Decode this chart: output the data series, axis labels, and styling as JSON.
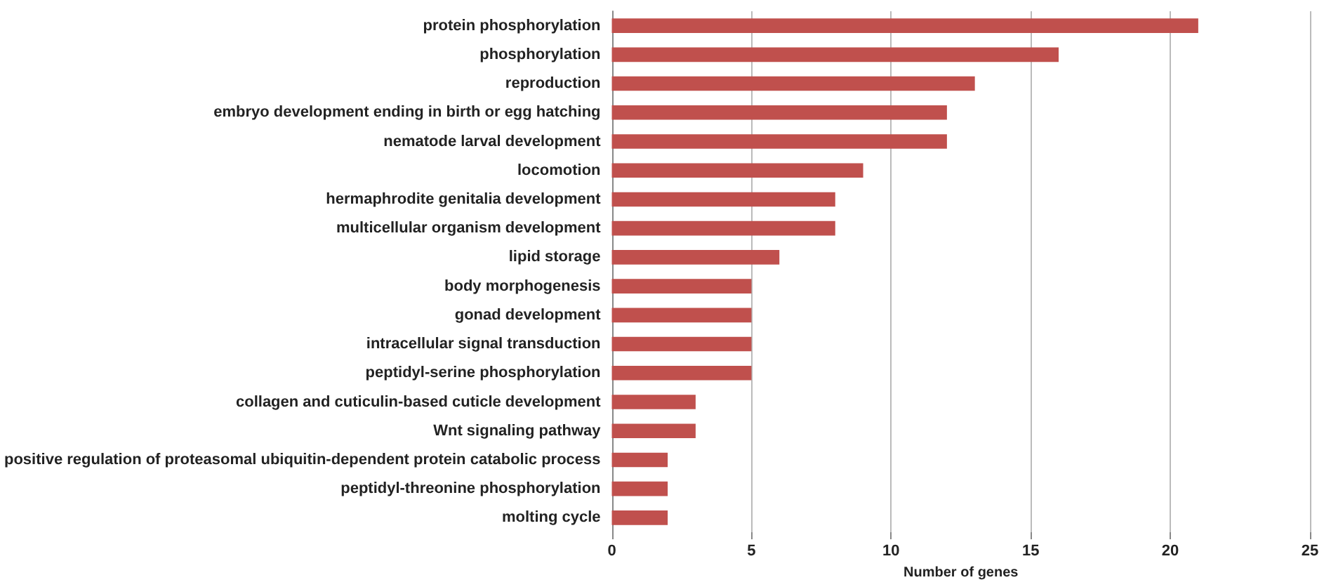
{
  "chart_data": {
    "type": "bar",
    "orientation": "horizontal",
    "xlabel": "Number of genes",
    "categories": [
      "protein phosphorylation",
      "phosphorylation",
      "reproduction",
      "embryo development ending in birth or egg hatching",
      "nematode larval development",
      "locomotion",
      "hermaphrodite genitalia development",
      "multicellular organism development",
      "lipid storage",
      "body morphogenesis",
      "gonad development",
      "intracellular signal transduction",
      "peptidyl-serine phosphorylation",
      "collagen and cuticulin-based cuticle development",
      "Wnt signaling pathway",
      "positive regulation of proteasomal ubiquitin-dependent protein catabolic process",
      "peptidyl-threonine phosphorylation",
      "molting cycle"
    ],
    "values": [
      21,
      16,
      13,
      12,
      12,
      9,
      8,
      8,
      6,
      5,
      5,
      5,
      5,
      3,
      3,
      2,
      2,
      2
    ],
    "color": "#c0504d",
    "xlim": [
      0,
      25
    ],
    "xticks": [
      0,
      5,
      10,
      15,
      20,
      25
    ],
    "grid": "x"
  }
}
